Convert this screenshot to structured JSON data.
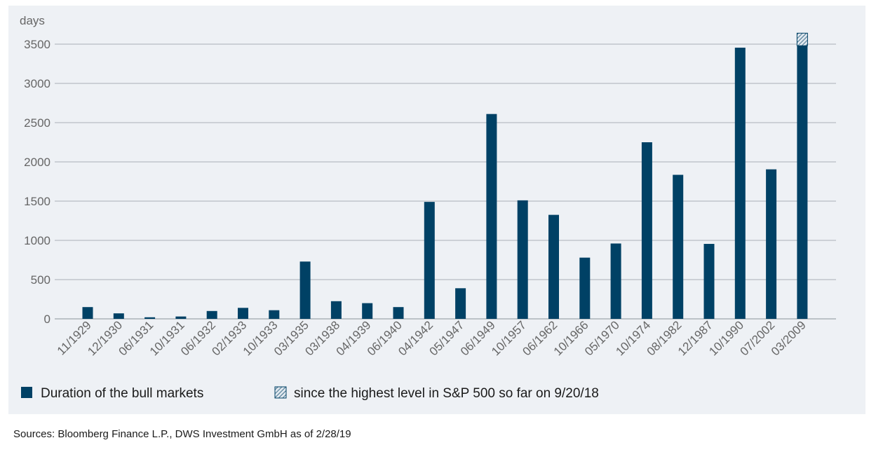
{
  "chart_data": {
    "type": "bar",
    "ylabel": "days",
    "ylim": [
      0,
      3500
    ],
    "yticks": [
      0,
      500,
      1000,
      1500,
      2000,
      2500,
      3000,
      3500
    ],
    "grid": true,
    "categories": [
      "11/1929",
      "12/1930",
      "06/1931",
      "10/1931",
      "06/1932",
      "02/1933",
      "10/1933",
      "03/1935",
      "03/1938",
      "04/1939",
      "06/1940",
      "04/1942",
      "05/1947",
      "06/1949",
      "10/1957",
      "06/1962",
      "10/1966",
      "05/1970",
      "10/1974",
      "08/1982",
      "12/1987",
      "10/1990",
      "07/2002",
      "03/2009"
    ],
    "series": [
      {
        "name": "Duration of the bull markets",
        "color": "#004165",
        "values": [
          150,
          70,
          20,
          30,
          100,
          140,
          110,
          730,
          225,
          200,
          150,
          1490,
          390,
          2610,
          1510,
          1325,
          780,
          960,
          2250,
          1835,
          955,
          3455,
          1905,
          3480
        ]
      },
      {
        "name": "since the highest level in S&P 500 so far on 9/20/18",
        "pattern": "hatched",
        "color": "#004165",
        "stacked_on": "Duration of the bull markets",
        "values": [
          0,
          0,
          0,
          0,
          0,
          0,
          0,
          0,
          0,
          0,
          0,
          0,
          0,
          0,
          0,
          0,
          0,
          0,
          0,
          0,
          0,
          0,
          0,
          160
        ]
      }
    ],
    "legend_position": "bottom-left"
  },
  "source": "Sources: Bloomberg Finance L.P., DWS Investment GmbH as of 2/28/19",
  "colors": {
    "bar": "#004165",
    "panel": "#eef1f5",
    "grid": "#a9b0b8",
    "axis": "#666666"
  }
}
